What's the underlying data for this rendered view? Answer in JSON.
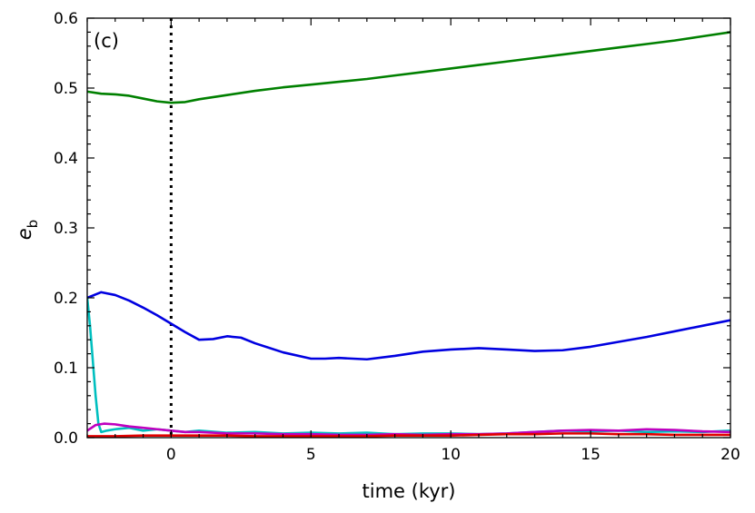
{
  "chart_data": {
    "type": "line",
    "panel_label": "(c)",
    "xlabel": "time (kyr)",
    "ylabel_main": "e",
    "ylabel_sub": "b",
    "xlim": [
      -3.0,
      20.0
    ],
    "ylim": [
      0.0,
      0.6
    ],
    "xticks": [
      0,
      5,
      10,
      15,
      20
    ],
    "yticks": [
      0.0,
      0.1,
      0.2,
      0.3,
      0.4,
      0.5,
      0.6
    ],
    "xtick_labels": [
      "0",
      "5",
      "10",
      "15",
      "20"
    ],
    "ytick_labels": [
      "0.0",
      "0.1",
      "0.2",
      "0.3",
      "0.4",
      "0.5",
      "0.6"
    ],
    "vline_x": 0,
    "grid": false,
    "legend": "none",
    "series": [
      {
        "color": "#008000",
        "x": [
          -3.0,
          -2.5,
          -2.0,
          -1.5,
          -1.0,
          -0.5,
          0.0,
          0.5,
          1.0,
          2.0,
          3.0,
          4.0,
          5.0,
          6.0,
          7.0,
          8.0,
          9.0,
          10.0,
          11.0,
          12.0,
          13.0,
          14.0,
          15.0,
          16.0,
          17.0,
          18.0,
          19.0,
          20.0
        ],
        "y": [
          0.495,
          0.492,
          0.491,
          0.489,
          0.485,
          0.481,
          0.479,
          0.48,
          0.484,
          0.49,
          0.496,
          0.501,
          0.505,
          0.509,
          0.513,
          0.518,
          0.523,
          0.528,
          0.533,
          0.538,
          0.543,
          0.548,
          0.553,
          0.558,
          0.563,
          0.568,
          0.574,
          0.58
        ]
      },
      {
        "color": "#0000e0",
        "x": [
          -3.0,
          -2.5,
          -2.0,
          -1.5,
          -1.0,
          -0.5,
          0.0,
          0.5,
          1.0,
          1.5,
          2.0,
          2.5,
          3.0,
          4.0,
          5.0,
          5.5,
          6.0,
          7.0,
          8.0,
          9.0,
          10.0,
          11.0,
          12.0,
          13.0,
          14.0,
          15.0,
          16.0,
          17.0,
          18.0,
          19.0,
          20.0
        ],
        "y": [
          0.2,
          0.208,
          0.204,
          0.196,
          0.186,
          0.175,
          0.163,
          0.151,
          0.14,
          0.141,
          0.145,
          0.143,
          0.135,
          0.122,
          0.113,
          0.113,
          0.114,
          0.112,
          0.117,
          0.123,
          0.126,
          0.128,
          0.126,
          0.124,
          0.125,
          0.13,
          0.137,
          0.144,
          0.152,
          0.16,
          0.168
        ]
      },
      {
        "color": "#00bfbf",
        "x": [
          -3.0,
          -2.9,
          -2.8,
          -2.7,
          -2.6,
          -2.5,
          -2.3,
          -2.0,
          -1.5,
          -1.0,
          -0.5,
          0.0,
          0.5,
          1.0,
          2.0,
          3.0,
          4.0,
          5.0,
          6.0,
          7.0,
          8.0,
          9.0,
          10.0,
          11.0,
          12.0,
          13.0,
          14.0,
          15.0,
          16.0,
          17.0,
          18.0,
          19.0,
          20.0
        ],
        "y": [
          0.2,
          0.16,
          0.11,
          0.06,
          0.02,
          0.008,
          0.01,
          0.012,
          0.014,
          0.01,
          0.012,
          0.01,
          0.008,
          0.01,
          0.007,
          0.008,
          0.006,
          0.007,
          0.006,
          0.007,
          0.005,
          0.006,
          0.006,
          0.005,
          0.006,
          0.008,
          0.01,
          0.009,
          0.01,
          0.008,
          0.009,
          0.008,
          0.01
        ]
      },
      {
        "color": "#bf00bf",
        "x": [
          -3.0,
          -2.7,
          -2.4,
          -2.0,
          -1.5,
          -1.0,
          -0.5,
          0.0,
          0.5,
          1.0,
          2.0,
          3.0,
          4.0,
          5.0,
          6.0,
          7.0,
          8.0,
          9.0,
          10.0,
          11.0,
          12.0,
          13.0,
          14.0,
          15.0,
          16.0,
          17.0,
          18.0,
          19.0,
          20.0
        ],
        "y": [
          0.01,
          0.018,
          0.02,
          0.019,
          0.016,
          0.014,
          0.012,
          0.01,
          0.008,
          0.008,
          0.006,
          0.006,
          0.005,
          0.005,
          0.004,
          0.004,
          0.005,
          0.004,
          0.005,
          0.005,
          0.006,
          0.008,
          0.01,
          0.011,
          0.01,
          0.012,
          0.011,
          0.009,
          0.008
        ]
      },
      {
        "color": "#e00000",
        "x": [
          -3.0,
          -2.0,
          -1.0,
          0.0,
          1.0,
          2.0,
          3.0,
          4.0,
          5.0,
          6.0,
          7.0,
          8.0,
          9.0,
          10.0,
          11.0,
          12.0,
          13.0,
          14.0,
          15.0,
          16.0,
          17.0,
          18.0,
          19.0,
          20.0
        ],
        "y": [
          0.002,
          0.002,
          0.003,
          0.003,
          0.003,
          0.003,
          0.002,
          0.002,
          0.002,
          0.002,
          0.002,
          0.003,
          0.003,
          0.003,
          0.004,
          0.005,
          0.005,
          0.006,
          0.006,
          0.005,
          0.005,
          0.004,
          0.004,
          0.004
        ]
      }
    ]
  }
}
